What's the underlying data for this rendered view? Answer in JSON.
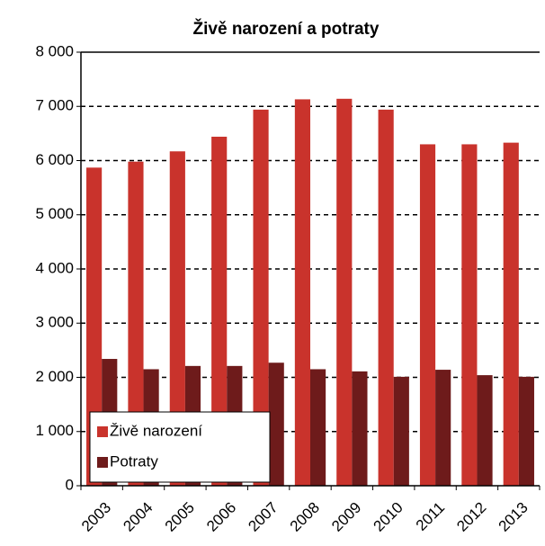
{
  "chart_data": {
    "type": "bar",
    "title": "Živě narození  a potraty",
    "categories": [
      "2003",
      "2004",
      "2005",
      "2006",
      "2007",
      "2008",
      "2009",
      "2010",
      "2011",
      "2012",
      "2013"
    ],
    "series": [
      {
        "name": "Živě narození",
        "color": "#c9332c",
        "values": [
          5870,
          5980,
          6170,
          6440,
          6940,
          7130,
          7140,
          6940,
          6300,
          6300,
          6330
        ]
      },
      {
        "name": "Potraty",
        "color": "#6e1b1b",
        "values": [
          2340,
          2150,
          2210,
          2210,
          2270,
          2150,
          2110,
          2010,
          2140,
          2040,
          2010
        ]
      }
    ],
    "ylim": [
      0,
      8000
    ],
    "yticks": [
      0,
      {
        "value": 1000,
        "label": "1 000"
      },
      {
        "value": 2000,
        "label": "2 000"
      },
      {
        "value": 3000,
        "label": "3 000"
      },
      {
        "value": 4000,
        "label": "4 000"
      },
      {
        "value": 5000,
        "label": "5 000"
      },
      {
        "value": 6000,
        "label": "6 000"
      },
      {
        "value": 7000,
        "label": "7 000"
      },
      {
        "value": 8000,
        "label": "8 000"
      }
    ],
    "grid": true,
    "legend": "lower left"
  }
}
